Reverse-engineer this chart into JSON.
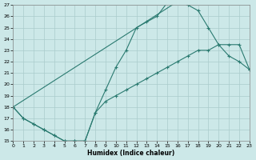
{
  "xlabel": "Humidex (Indice chaleur)",
  "bg_color": "#cce8e8",
  "grid_color": "#aacccc",
  "line_color": "#2a7a70",
  "xlim": [
    0,
    23
  ],
  "ylim": [
    15,
    27
  ],
  "xticks": [
    0,
    1,
    2,
    3,
    4,
    5,
    6,
    7,
    8,
    9,
    10,
    11,
    12,
    13,
    14,
    15,
    16,
    17,
    18,
    19,
    20,
    21,
    22,
    23
  ],
  "yticks": [
    15,
    16,
    17,
    18,
    19,
    20,
    21,
    22,
    23,
    24,
    25,
    26,
    27
  ],
  "line1_x": [
    0,
    1,
    2,
    3,
    4,
    5,
    6,
    7,
    8,
    9,
    10,
    11,
    12,
    13,
    14,
    15,
    16
  ],
  "line1_y": [
    18,
    17,
    16.5,
    16,
    15.5,
    15,
    15,
    15,
    17.5,
    19.5,
    21.5,
    23,
    25,
    25.5,
    26,
    27.2,
    27.3
  ],
  "line2_x": [
    0,
    16,
    17,
    18,
    19,
    20,
    21,
    22,
    23
  ],
  "line2_y": [
    18,
    27.3,
    27.0,
    26.5,
    25.0,
    23.5,
    22.5,
    22.0,
    21.3
  ],
  "line3_x": [
    0,
    1,
    2,
    3,
    4,
    5,
    6,
    7,
    8,
    9,
    10,
    11,
    12,
    13,
    14,
    15,
    16,
    17,
    18,
    19,
    20,
    21,
    22,
    23
  ],
  "line3_y": [
    18,
    17,
    16.5,
    16,
    15.5,
    15,
    15,
    15,
    17.5,
    18.5,
    19.0,
    19.5,
    20.0,
    20.5,
    21.0,
    21.5,
    22.0,
    22.5,
    23.0,
    23.0,
    23.5,
    23.5,
    23.5,
    21.3
  ]
}
